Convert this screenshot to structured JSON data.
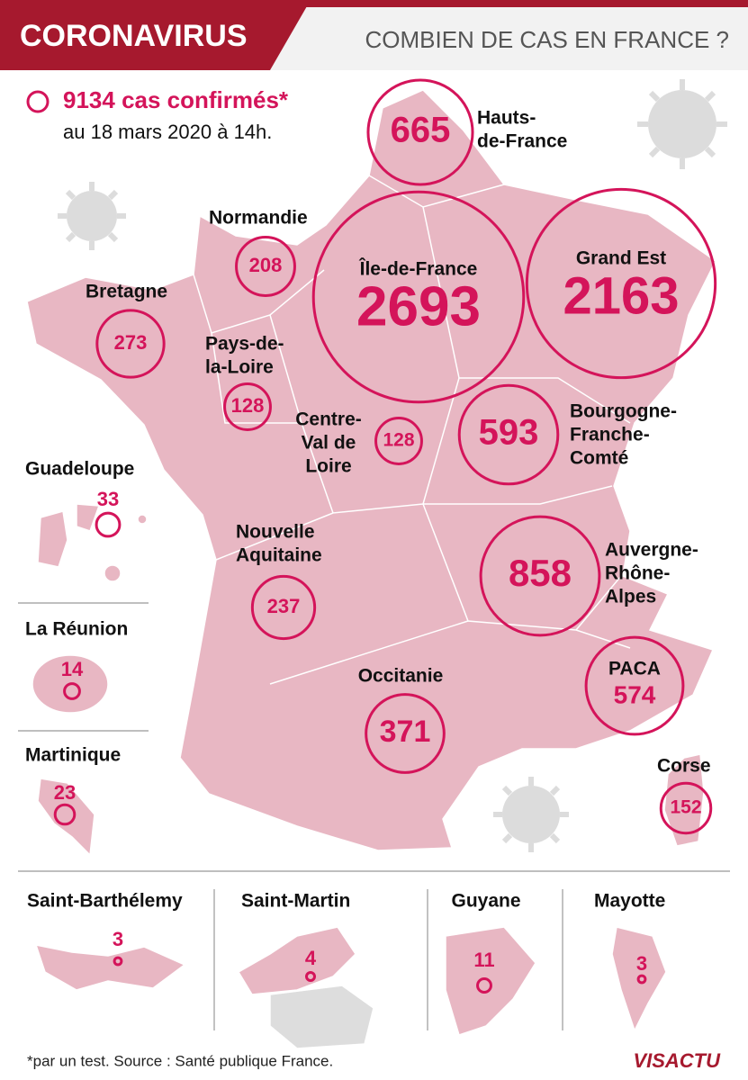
{
  "header": {
    "badge": "CORONAVIRUS",
    "title": "COMBIEN DE CAS EN FRANCE ?"
  },
  "legend": {
    "total": "9134 cas confirmés*",
    "date": "au 18 mars 2020 à 14h."
  },
  "regions": [
    {
      "name": [
        "Hauts-",
        "de-France"
      ],
      "cases": 665
    },
    {
      "name": [
        "Normandie"
      ],
      "cases": 208
    },
    {
      "name": [
        "Île-de-France"
      ],
      "cases": 2693
    },
    {
      "name": [
        "Grand Est"
      ],
      "cases": 2163
    },
    {
      "name": [
        "Bretagne"
      ],
      "cases": 273
    },
    {
      "name": [
        "Pays-de-",
        "la-Loire"
      ],
      "cases": 128
    },
    {
      "name": [
        "Centre-",
        "Val de",
        "Loire"
      ],
      "cases": 128
    },
    {
      "name": [
        "Bourgogne-",
        "Franche-",
        "Comté"
      ],
      "cases": 593
    },
    {
      "name": [
        "Nouvelle",
        "Aquitaine"
      ],
      "cases": 237
    },
    {
      "name": [
        "Auvergne-",
        "Rhône-",
        "Alpes"
      ],
      "cases": 858
    },
    {
      "name": [
        "Occitanie"
      ],
      "cases": 371
    },
    {
      "name": [
        "PACA"
      ],
      "cases": 574
    },
    {
      "name": [
        "Corse"
      ],
      "cases": 152
    }
  ],
  "overseas": [
    {
      "name": [
        "Guadeloupe"
      ],
      "cases": 33
    },
    {
      "name": [
        "La Réunion"
      ],
      "cases": 14
    },
    {
      "name": [
        "Martinique"
      ],
      "cases": 23
    },
    {
      "name": [
        "Saint-Barthélemy"
      ],
      "cases": 3
    },
    {
      "name": [
        "Saint-Martin"
      ],
      "cases": 4
    },
    {
      "name": [
        "Guyane"
      ],
      "cases": 11
    },
    {
      "name": [
        "Mayotte"
      ],
      "cases": 3
    }
  ],
  "footer": {
    "note": "*par un test. Source : Santé publique France.",
    "logo": "VISACTU"
  }
}
